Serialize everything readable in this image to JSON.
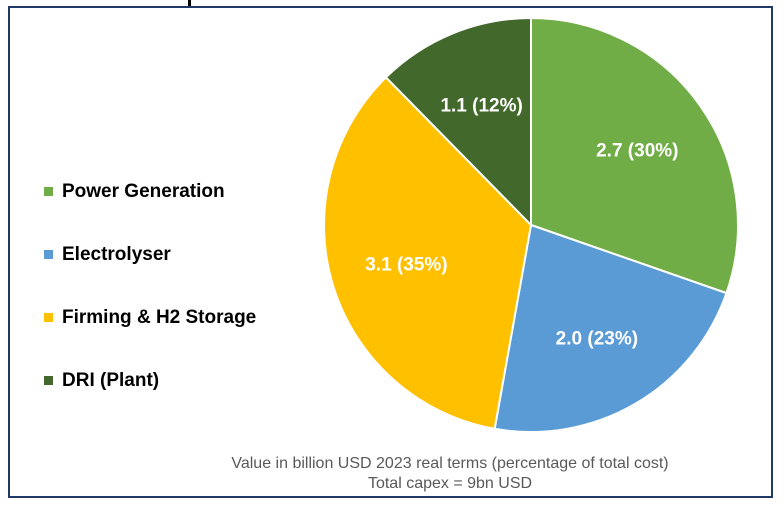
{
  "chart_data": {
    "type": "pie",
    "title": "",
    "slices": [
      {
        "label": "Power Generation",
        "value": 2.7,
        "percent": 30,
        "data_label": "2.7 (30%)",
        "color": "#70ad47"
      },
      {
        "label": "Electrolyser",
        "value": 2.0,
        "percent": 23,
        "data_label": "2.0 (23%)",
        "color": "#5b9bd5"
      },
      {
        "label": "Firming & H2 Storage",
        "value": 3.1,
        "percent": 35,
        "data_label": "3.1 (35%)",
        "color": "#ffc000"
      },
      {
        "label": "DRI (Plant)",
        "value": 1.1,
        "percent": 12,
        "data_label": "1.1 (12%)",
        "color": "#43682b"
      }
    ],
    "legend_position": "left",
    "start_angle": "top, clockwise"
  },
  "notes": {
    "line1": "Value in billion USD 2023 real terms (percentage of total cost)",
    "line2": "Total capex = 9bn USD"
  }
}
